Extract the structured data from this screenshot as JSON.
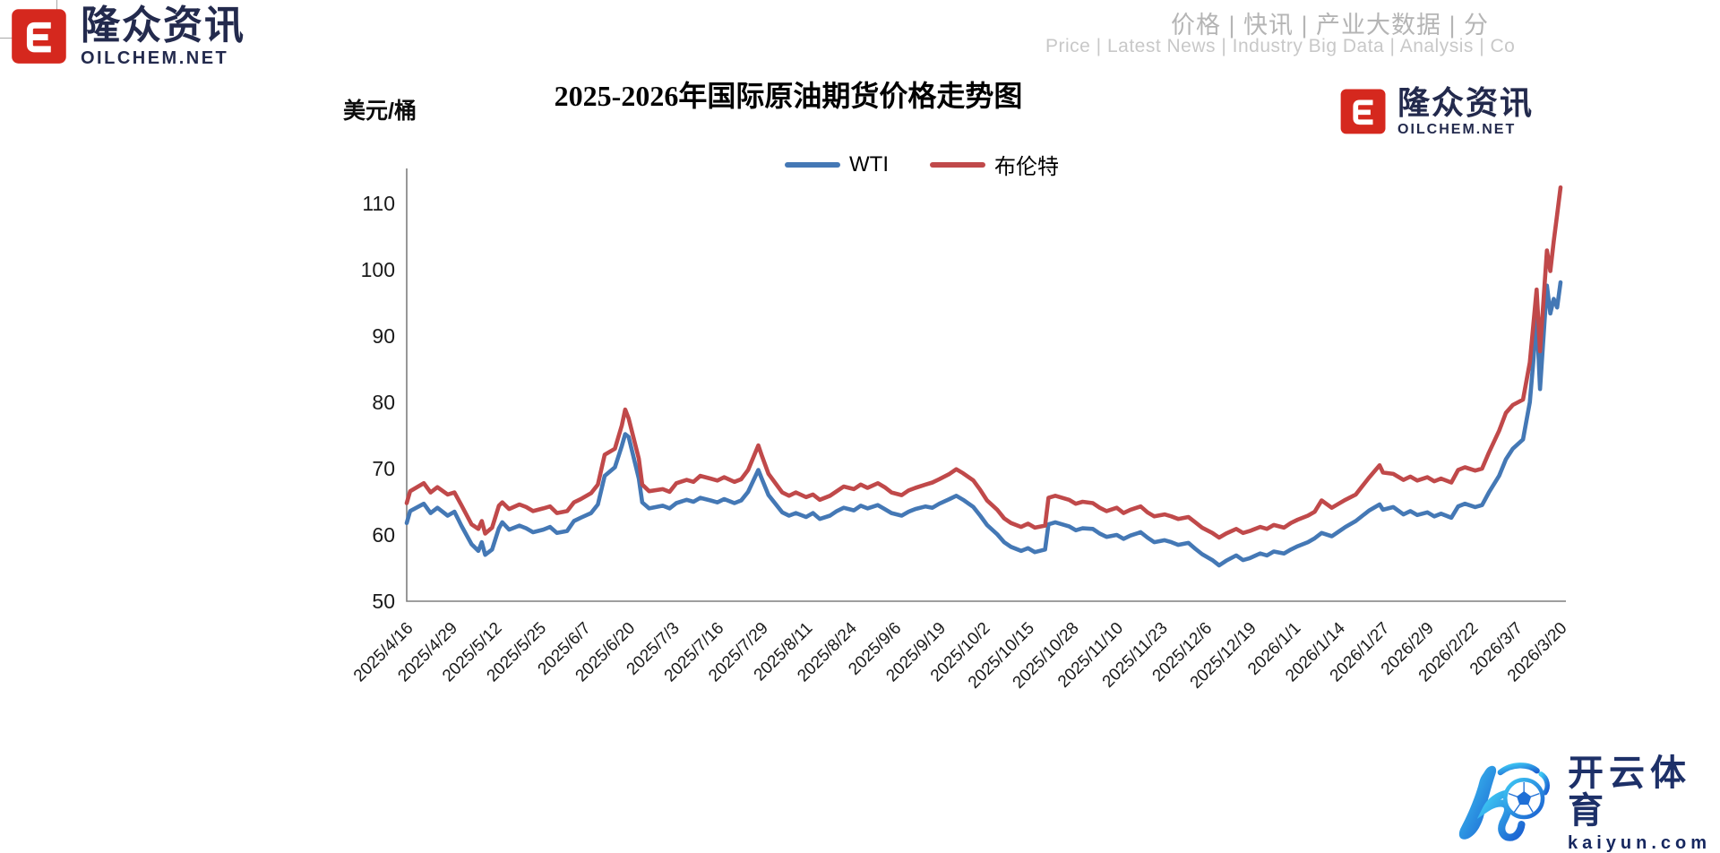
{
  "brand": {
    "name_cn": "隆众资讯",
    "site": "OILCHEM.NET"
  },
  "header": {
    "nav_cn": "价格 | 快讯 | 产业大数据 | 分",
    "nav_en": "Price | Latest News | Industry Big Data | Analysis | Co"
  },
  "footer": {
    "kaiyun_cn": "开云体育",
    "kaiyun_com": "kaiyun.com"
  },
  "colors": {
    "brand_red": "#d5281e",
    "brand_navy": "#232a4d",
    "wti_blue": "#4478b5",
    "brent_red": "#c0494a",
    "axis_gray": "#7f7f7f"
  },
  "chart_data": {
    "type": "line",
    "title": "2025-2026年国际原油期货价格走势图",
    "ylabel": "美元/桶",
    "xlabel": "",
    "ylim": [
      50,
      115
    ],
    "grid": false,
    "legend_position": "top-center",
    "y_ticks": [
      50,
      60,
      70,
      80,
      90,
      100,
      110
    ],
    "x_ticks": [
      "2025/4/16",
      "2025/4/29",
      "2025/5/12",
      "2025/5/25",
      "2025/6/7",
      "2025/6/20",
      "2025/7/3",
      "2025/7/16",
      "2025/7/29",
      "2025/8/11",
      "2025/8/24",
      "2025/9/6",
      "2025/9/19",
      "2025/10/2",
      "2025/10/15",
      "2025/10/28",
      "2025/11/10",
      "2025/11/23",
      "2025/12/6",
      "2025/12/19",
      "2026/1/1",
      "2026/1/14",
      "2026/1/27",
      "2026/2/9",
      "2026/2/22",
      "2026/3/7",
      "2026/3/20"
    ],
    "series": [
      {
        "name": "WTI",
        "key": "wti",
        "color": "#4478b5"
      },
      {
        "name": "布伦特",
        "key": "brent",
        "color": "#c0494a"
      }
    ],
    "dates": [
      "2025/4/16",
      "2025/4/17",
      "2025/4/21",
      "2025/4/23",
      "2025/4/25",
      "2025/4/28",
      "2025/4/30",
      "2025/5/2",
      "2025/5/5",
      "2025/5/7",
      "2025/5/8",
      "2025/5/9",
      "2025/5/11",
      "2025/5/13",
      "2025/5/14",
      "2025/5/16",
      "2025/5/19",
      "2025/5/21",
      "2025/5/23",
      "2025/5/26",
      "2025/5/28",
      "2025/5/30",
      "2025/6/2",
      "2025/6/4",
      "2025/6/6",
      "2025/6/9",
      "2025/6/11",
      "2025/6/13",
      "2025/6/16",
      "2025/6/18",
      "2025/6/19",
      "2025/6/20",
      "2025/6/23",
      "2025/6/24",
      "2025/6/26",
      "2025/6/30",
      "2025/7/2",
      "2025/7/4",
      "2025/7/7",
      "2025/7/9",
      "2025/7/11",
      "2025/7/14",
      "2025/7/16",
      "2025/7/18",
      "2025/7/21",
      "2025/7/23",
      "2025/7/25",
      "2025/7/28",
      "2025/7/29",
      "2025/7/31",
      "2025/8/4",
      "2025/8/6",
      "2025/8/8",
      "2025/8/11",
      "2025/8/13",
      "2025/8/15",
      "2025/8/18",
      "2025/8/20",
      "2025/8/22",
      "2025/8/25",
      "2025/8/27",
      "2025/8/29",
      "2025/9/1",
      "2025/9/3",
      "2025/9/5",
      "2025/9/8",
      "2025/9/10",
      "2025/9/12",
      "2025/9/15",
      "2025/9/17",
      "2025/9/19",
      "2025/9/22",
      "2025/9/24",
      "2025/9/26",
      "2025/9/29",
      "2025/10/1",
      "2025/10/3",
      "2025/10/6",
      "2025/10/8",
      "2025/10/10",
      "2025/10/13",
      "2025/10/15",
      "2025/10/17",
      "2025/10/20",
      "2025/10/21",
      "2025/10/23",
      "2025/10/27",
      "2025/10/29",
      "2025/10/31",
      "2025/11/3",
      "2025/11/5",
      "2025/11/7",
      "2025/11/10",
      "2025/11/12",
      "2025/11/14",
      "2025/11/17",
      "2025/11/19",
      "2025/11/21",
      "2025/11/24",
      "2025/11/26",
      "2025/11/28",
      "2025/12/1",
      "2025/12/3",
      "2025/12/5",
      "2025/12/8",
      "2025/12/10",
      "2025/12/12",
      "2025/12/15",
      "2025/12/17",
      "2025/12/19",
      "2025/12/22",
      "2025/12/24",
      "2025/12/26",
      "2025/12/29",
      "2025/12/31",
      "2026/1/2",
      "2026/1/5",
      "2026/1/7",
      "2026/1/9",
      "2026/1/12",
      "2026/1/14",
      "2026/1/16",
      "2026/1/19",
      "2026/1/21",
      "2026/1/23",
      "2026/1/26",
      "2026/1/27",
      "2026/1/30",
      "2026/2/2",
      "2026/2/4",
      "2026/2/6",
      "2026/2/9",
      "2026/2/11",
      "2026/2/13",
      "2026/2/16",
      "2026/2/18",
      "2026/2/20",
      "2026/2/23",
      "2026/2/25",
      "2026/2/27",
      "2026/3/2",
      "2026/3/4",
      "2026/3/6",
      "2026/3/9",
      "2026/3/11",
      "2026/3/12",
      "2026/3/13",
      "2026/3/14",
      "2026/3/16",
      "2026/3/17",
      "2026/3/18",
      "2026/3/19",
      "2026/3/20"
    ],
    "wti": [
      61.8,
      63.6,
      64.7,
      63.3,
      64.1,
      62.9,
      63.5,
      61.4,
      58.6,
      57.6,
      58.9,
      57.0,
      57.8,
      61.0,
      61.9,
      60.8,
      61.4,
      61.0,
      60.4,
      60.8,
      61.2,
      60.3,
      60.6,
      62.1,
      62.6,
      63.3,
      64.6,
      68.9,
      70.2,
      73.4,
      75.2,
      74.8,
      68.5,
      64.9,
      64.0,
      64.4,
      64.0,
      64.8,
      65.3,
      65.0,
      65.6,
      65.2,
      64.9,
      65.4,
      64.8,
      65.2,
      66.5,
      69.8,
      68.5,
      66.0,
      63.4,
      62.9,
      63.3,
      62.7,
      63.3,
      62.4,
      62.9,
      63.6,
      64.1,
      63.7,
      64.4,
      64.0,
      64.5,
      63.9,
      63.3,
      62.9,
      63.5,
      63.9,
      64.3,
      64.1,
      64.7,
      65.4,
      65.9,
      65.3,
      64.2,
      62.9,
      61.5,
      60.1,
      58.9,
      58.2,
      57.6,
      58.0,
      57.4,
      57.8,
      61.6,
      61.9,
      61.3,
      60.7,
      61.0,
      60.9,
      60.2,
      59.7,
      60.0,
      59.4,
      59.9,
      60.4,
      59.6,
      58.9,
      59.2,
      58.9,
      58.5,
      58.8,
      57.9,
      57.1,
      56.2,
      55.4,
      56.1,
      56.9,
      56.2,
      56.5,
      57.2,
      56.9,
      57.5,
      57.2,
      57.8,
      58.3,
      58.9,
      59.5,
      60.3,
      59.8,
      60.5,
      61.2,
      62.1,
      62.9,
      63.7,
      64.6,
      63.8,
      64.2,
      63.1,
      63.6,
      63.0,
      63.4,
      62.8,
      63.2,
      62.6,
      64.3,
      64.7,
      64.2,
      64.5,
      66.4,
      68.9,
      71.4,
      73.0,
      74.4,
      80.0,
      86.0,
      93.3,
      82.0,
      97.6,
      93.4,
      95.6,
      94.3,
      98.1
    ],
    "brent": [
      64.8,
      66.6,
      67.8,
      66.4,
      67.2,
      66.1,
      66.4,
      64.5,
      61.6,
      60.9,
      62.1,
      60.2,
      61.1,
      64.4,
      64.9,
      63.9,
      64.6,
      64.2,
      63.6,
      64.0,
      64.3,
      63.3,
      63.6,
      64.9,
      65.4,
      66.3,
      67.6,
      72.1,
      73.0,
      76.5,
      78.9,
      77.6,
      71.5,
      67.6,
      66.6,
      66.9,
      66.5,
      67.8,
      68.3,
      68.0,
      68.9,
      68.5,
      68.2,
      68.7,
      68.0,
      68.4,
      69.8,
      73.5,
      72.0,
      69.2,
      66.4,
      65.9,
      66.4,
      65.7,
      66.1,
      65.3,
      65.9,
      66.6,
      67.3,
      66.9,
      67.6,
      67.1,
      67.8,
      67.2,
      66.4,
      66.0,
      66.7,
      67.1,
      67.6,
      67.9,
      68.4,
      69.2,
      69.9,
      69.3,
      68.2,
      66.8,
      65.2,
      63.8,
      62.5,
      61.8,
      61.2,
      61.7,
      61.1,
      61.4,
      65.6,
      65.9,
      65.3,
      64.7,
      65.0,
      64.8,
      64.1,
      63.6,
      64.1,
      63.3,
      63.8,
      64.3,
      63.4,
      62.8,
      63.1,
      62.8,
      62.4,
      62.7,
      61.9,
      61.1,
      60.3,
      59.6,
      60.2,
      60.9,
      60.3,
      60.6,
      61.2,
      60.9,
      61.5,
      61.1,
      61.8,
      62.3,
      62.9,
      63.5,
      65.2,
      64.1,
      64.7,
      65.3,
      66.1,
      67.4,
      68.7,
      70.5,
      69.4,
      69.2,
      68.3,
      68.8,
      68.2,
      68.7,
      68.1,
      68.5,
      67.9,
      69.8,
      70.2,
      69.7,
      70.0,
      72.4,
      75.7,
      78.4,
      79.6,
      80.4,
      86.0,
      91.5,
      97.0,
      87.7,
      102.9,
      99.8,
      104.3,
      108.3,
      112.4
    ]
  }
}
